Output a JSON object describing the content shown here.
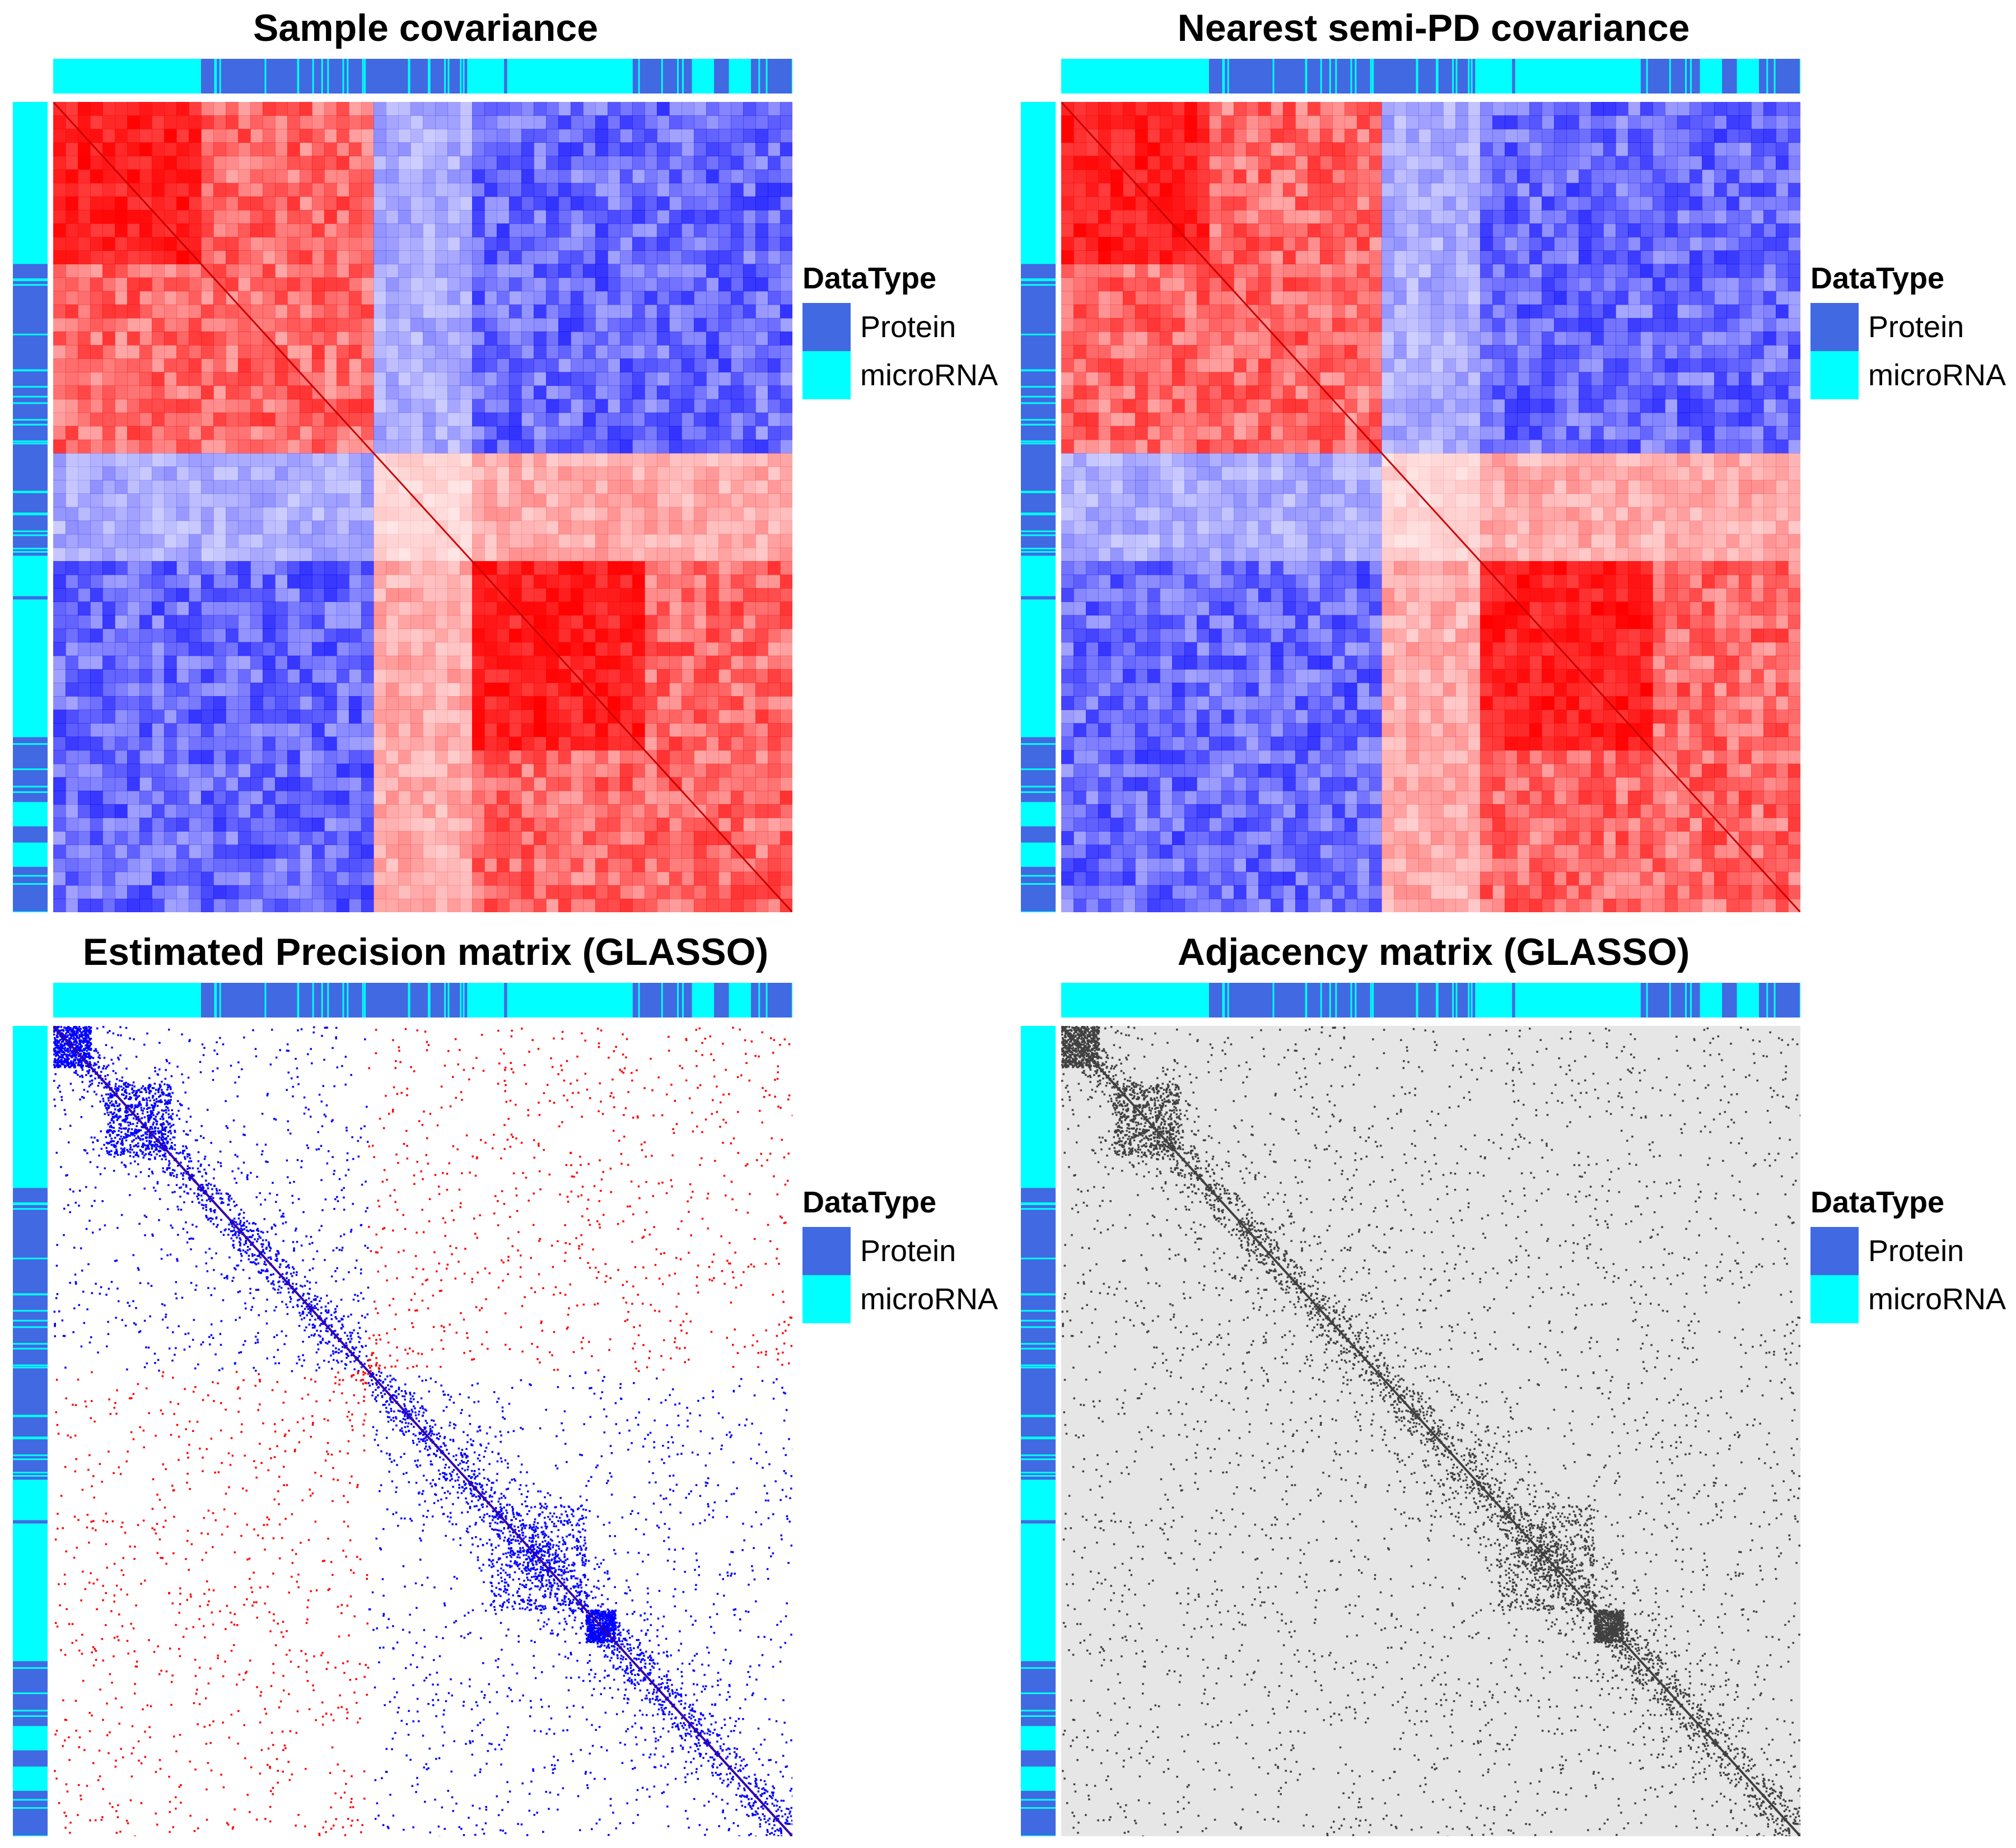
{
  "chart_data": [
    {
      "type": "heatmap",
      "title": "Sample covariance",
      "kind": "covariance",
      "legend": {
        "title": "DataType",
        "entries": [
          {
            "label": "Protein",
            "color": "#4169E1"
          },
          {
            "label": "microRNA",
            "color": "#00FFFF"
          }
        ]
      },
      "colors": {
        "positive": "#FF0000",
        "negative": "#0000FF",
        "neutral": "#FFFFFF"
      },
      "block_structure": {
        "groups": 2,
        "within_group_sign": "positive",
        "between_group_sign": "negative"
      }
    },
    {
      "type": "heatmap",
      "title": "Nearest semi-PD covariance",
      "kind": "covariance",
      "legend": {
        "title": "DataType",
        "entries": [
          {
            "label": "Protein",
            "color": "#4169E1"
          },
          {
            "label": "microRNA",
            "color": "#00FFFF"
          }
        ]
      },
      "colors": {
        "positive": "#FF0000",
        "negative": "#0000FF",
        "neutral": "#FFFFFF"
      },
      "block_structure": {
        "groups": 2,
        "within_group_sign": "positive",
        "between_group_sign": "negative"
      }
    },
    {
      "type": "heatmap",
      "title": "Estimated Precision matrix (GLASSO)",
      "kind": "precision",
      "legend": {
        "title": "DataType",
        "entries": [
          {
            "label": "Protein",
            "color": "#4169E1"
          },
          {
            "label": "microRNA",
            "color": "#00FFFF"
          }
        ]
      },
      "colors": {
        "positive": "#FF0000",
        "negative": "#0000FF",
        "neutral": "#FFFFFF"
      },
      "sparse": true
    },
    {
      "type": "heatmap",
      "title": "Adjacency matrix (GLASSO)",
      "kind": "adjacency",
      "legend": {
        "title": "DataType",
        "entries": [
          {
            "label": "Protein",
            "color": "#4169E1"
          },
          {
            "label": "microRNA",
            "color": "#00FFFF"
          }
        ]
      },
      "colors": {
        "edge": "#404040",
        "background": "#E6E6E6"
      },
      "sparse": true
    }
  ],
  "annotation": {
    "name": "DataType",
    "segments": [
      {
        "type": "microRNA",
        "fraction": 0.2
      },
      {
        "type": "Protein",
        "fraction": 0.36
      },
      {
        "type": "microRNA",
        "fraction": 0.05
      },
      {
        "type": "Protein",
        "fraction": 0.004
      },
      {
        "type": "microRNA",
        "fraction": 0.17
      },
      {
        "type": "Protein",
        "fraction": 0.08
      },
      {
        "type": "microRNA",
        "fraction": 0.03
      },
      {
        "type": "Protein",
        "fraction": 0.02
      },
      {
        "type": "microRNA",
        "fraction": 0.03
      },
      {
        "type": "Protein",
        "fraction": 0.056
      }
    ]
  }
}
